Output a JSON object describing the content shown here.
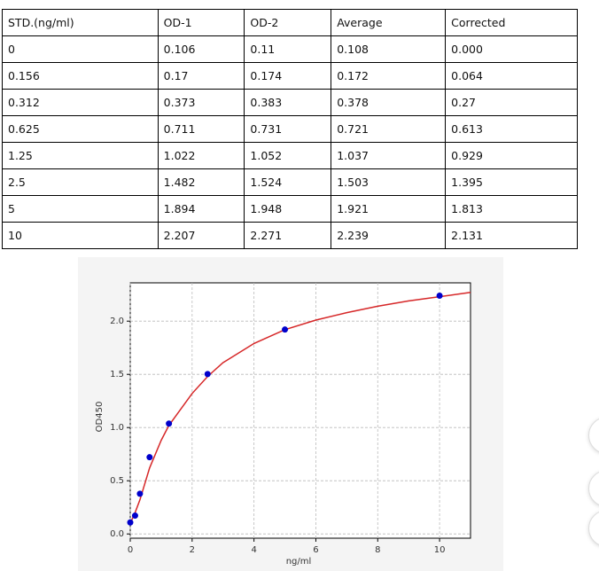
{
  "table": {
    "header": [
      "STD.(ng/ml)",
      "OD-1",
      "OD-2",
      "Average",
      "Corrected"
    ],
    "rows": [
      [
        "0",
        "0.106",
        "0.11",
        "0.108",
        "0.000"
      ],
      [
        "0.156",
        "0.17",
        "0.174",
        "0.172",
        "0.064"
      ],
      [
        "0.312",
        "0.373",
        "0.383",
        "0.378",
        "0.27"
      ],
      [
        "0.625",
        "0.711",
        "0.731",
        "0.721",
        "0.613"
      ],
      [
        "1.25",
        "1.022",
        "1.052",
        "1.037",
        "0.929"
      ],
      [
        "2.5",
        "1.482",
        "1.524",
        "1.503",
        "1.395"
      ],
      [
        "5",
        "1.894",
        "1.948",
        "1.921",
        "1.813"
      ],
      [
        "10",
        "2.207",
        "2.271",
        "2.239",
        "2.131"
      ]
    ]
  },
  "chart_data": {
    "type": "scatter",
    "xlabel": "ng/ml",
    "ylabel": "OD450",
    "x": [
      0,
      0.156,
      0.312,
      0.625,
      1.25,
      2.5,
      5,
      10
    ],
    "values": [
      0.108,
      0.172,
      0.378,
      0.721,
      1.037,
      1.503,
      1.921,
      2.239
    ],
    "color": "#0000cc",
    "curve": {
      "color": "#d62728",
      "x": [
        0,
        0.156,
        0.312,
        0.625,
        1,
        1.25,
        1.5,
        2,
        2.5,
        3,
        4,
        5,
        6,
        7,
        8,
        9,
        10,
        11
      ],
      "values": [
        0.1,
        0.2,
        0.32,
        0.62,
        0.88,
        1.02,
        1.12,
        1.32,
        1.48,
        1.61,
        1.79,
        1.92,
        2.01,
        2.08,
        2.14,
        2.19,
        2.23,
        2.27
      ]
    },
    "xlim": [
      0,
      11
    ],
    "ylim": [
      -0.04,
      2.36
    ],
    "xticks": [
      0,
      2,
      4,
      6,
      8,
      10
    ],
    "yticks": [
      {
        "value": 0,
        "label": "0.0"
      },
      0.5,
      {
        "value": 1,
        "label": "1.0"
      },
      1.5,
      {
        "value": 2,
        "label": "2.0"
      }
    ],
    "grid": true
  }
}
